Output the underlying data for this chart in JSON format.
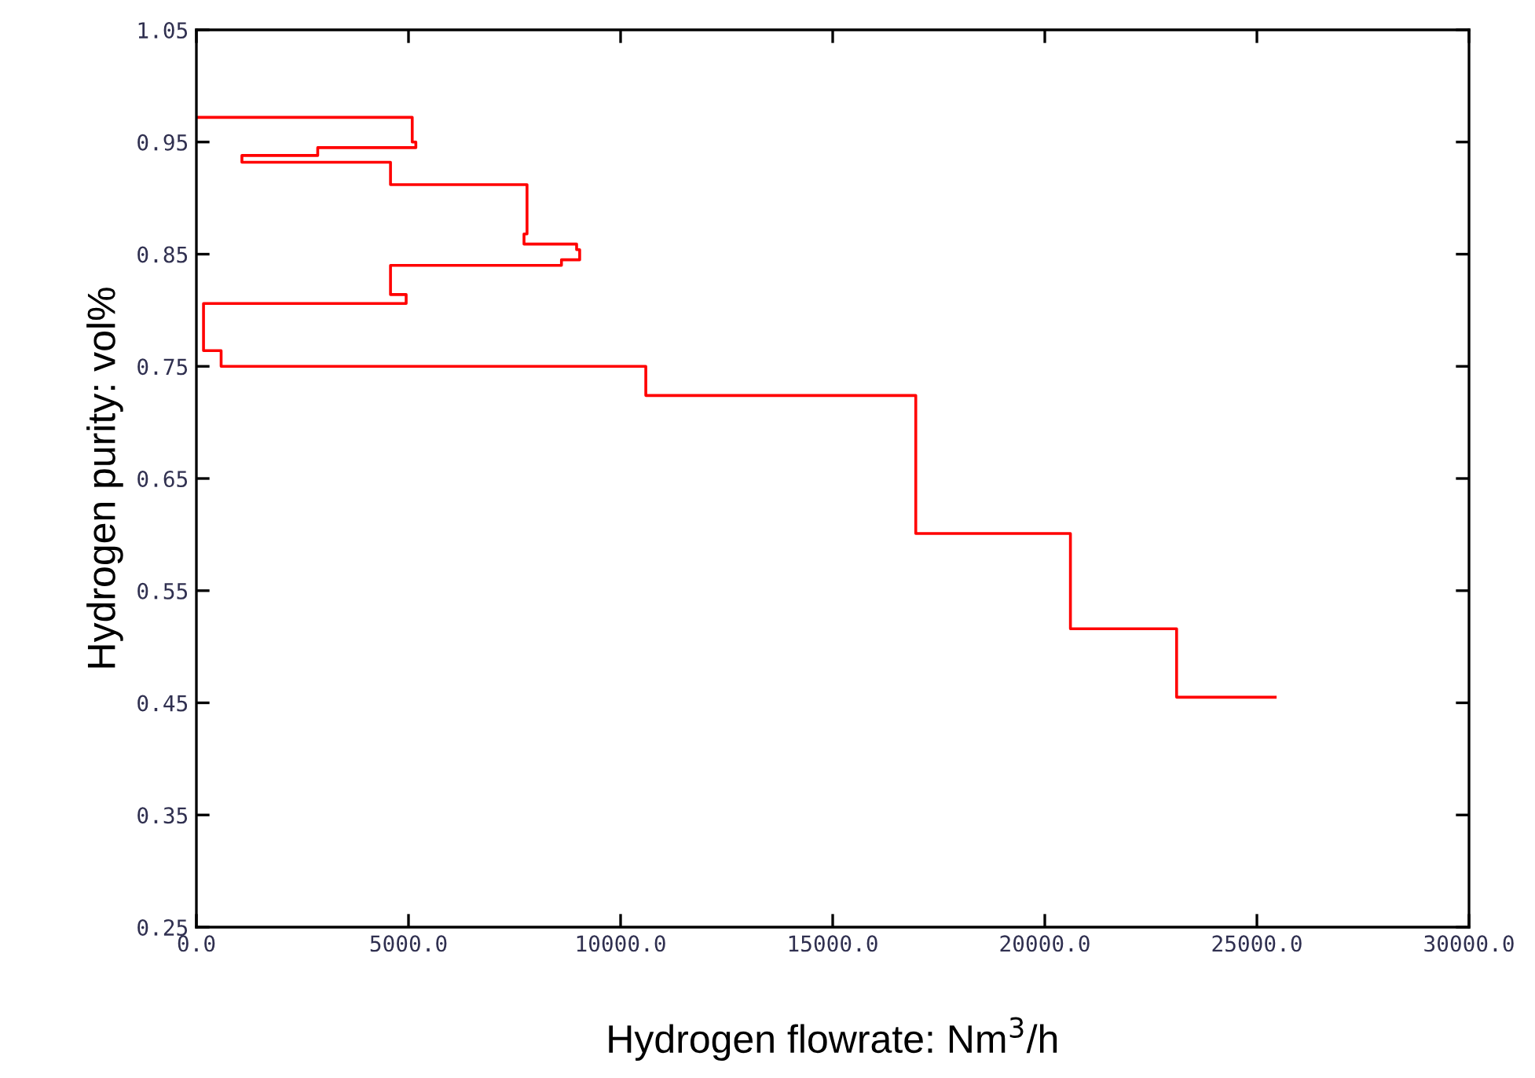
{
  "chart_data": {
    "type": "line",
    "xlabel": "Hydrogen flowrate: Nm$^{3}$/h",
    "ylabel": "Hydrogen purity: vol%",
    "series": [
      {
        "color": "#ff0000",
        "x": [
          0,
          5088,
          5088,
          5173,
          5173,
          2860,
          2860,
          1073,
          1073,
          4576,
          4576,
          7794,
          7794,
          7723,
          7723,
          8963,
          8963,
          9035,
          9035,
          8606,
          8606,
          4576,
          4576,
          4945,
          4945,
          168,
          168,
          583,
          583,
          10594,
          10594,
          16958,
          16958,
          20604,
          20604,
          23107,
          23107,
          25431
        ],
        "values": [
          0.972,
          0.972,
          0.95,
          0.95,
          0.945,
          0.945,
          0.938,
          0.938,
          0.932,
          0.932,
          0.912,
          0.912,
          0.868,
          0.868,
          0.859,
          0.859,
          0.854,
          0.854,
          0.845,
          0.845,
          0.84,
          0.84,
          0.814,
          0.814,
          0.806,
          0.806,
          0.764,
          0.764,
          0.75,
          0.75,
          0.724,
          0.724,
          0.601,
          0.601,
          0.516,
          0.516,
          0.455,
          0.455
        ]
      }
    ],
    "xlim": [
      0,
      30000
    ],
    "xticks": [
      {
        "value": 0,
        "label": "0.0"
      },
      {
        "value": 5000,
        "label": "5000.0"
      },
      {
        "value": 10000,
        "label": "10000.0"
      },
      {
        "value": 15000,
        "label": "15000.0"
      },
      {
        "value": 20000,
        "label": "20000.0"
      },
      {
        "value": 25000,
        "label": "25000.0"
      },
      {
        "value": 30000,
        "label": "30000.0"
      }
    ],
    "ylim": [
      0.25,
      1.05
    ],
    "yticks": [
      0.25,
      0.35,
      0.45,
      0.55,
      0.65,
      0.75,
      0.85,
      0.95,
      1.05
    ],
    "grid": false,
    "marker": "none",
    "line_style": "solid"
  }
}
